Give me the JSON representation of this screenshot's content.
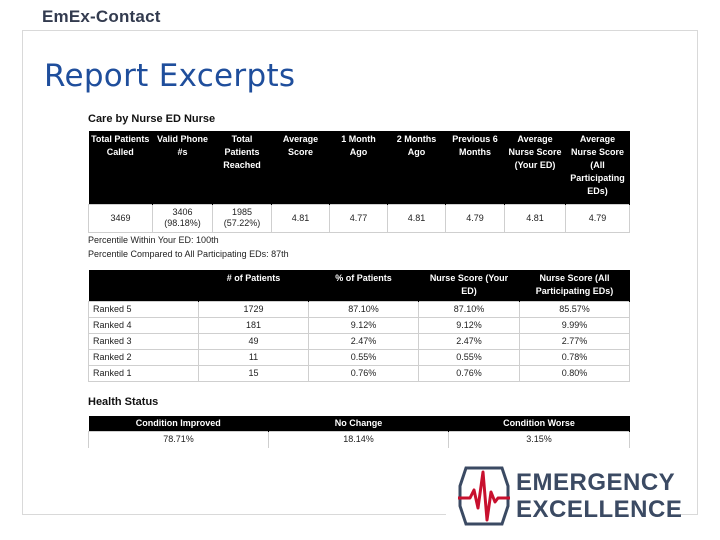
{
  "brand": "EmEx-Contact",
  "title": "Report Excerpts",
  "care_section": {
    "title": "Care by Nurse ED Nurse",
    "headers": [
      "Total Patients Called",
      "Valid Phone #s",
      "Total Patients Reached",
      "Average Score",
      "1 Month Ago",
      "2 Months Ago",
      "Previous 6 Months",
      "Average Nurse Score (Your ED)",
      "Average Nurse Score (All Participating EDs)"
    ],
    "row": [
      "3469",
      "3406 (98.18%)",
      "1985 (57.22%)",
      "4.81",
      "4.77",
      "4.81",
      "4.79",
      "4.81",
      "4.79"
    ],
    "percentile_ed": "Percentile Within Your ED: 100th",
    "percentile_all": "Percentile Compared to All Participating EDs: 87th"
  },
  "rank_table": {
    "headers": [
      "",
      "# of Patients",
      "% of Patients",
      "Nurse Score (Your ED)",
      "Nurse Score (All Participating EDs)"
    ],
    "rows": [
      [
        "Ranked 5",
        "1729",
        "87.10%",
        "87.10%",
        "85.57%"
      ],
      [
        "Ranked 4",
        "181",
        "9.12%",
        "9.12%",
        "9.99%"
      ],
      [
        "Ranked 3",
        "49",
        "2.47%",
        "2.47%",
        "2.77%"
      ],
      [
        "Ranked 2",
        "11",
        "0.55%",
        "0.55%",
        "0.78%"
      ],
      [
        "Ranked 1",
        "15",
        "0.76%",
        "0.76%",
        "0.80%"
      ]
    ]
  },
  "health_status": {
    "title": "Health Status",
    "headers": [
      "Condition Improved",
      "No Change",
      "Condition Worse"
    ],
    "row": [
      "78.71%",
      "18.14%",
      "3.15%"
    ]
  },
  "logo": {
    "line1": "EMERGENCY",
    "line2": "EXCELLENCE",
    "icon": "heartbeat-cross-icon",
    "colors": {
      "red": "#c8102e",
      "navy": "#3b4a63"
    }
  }
}
